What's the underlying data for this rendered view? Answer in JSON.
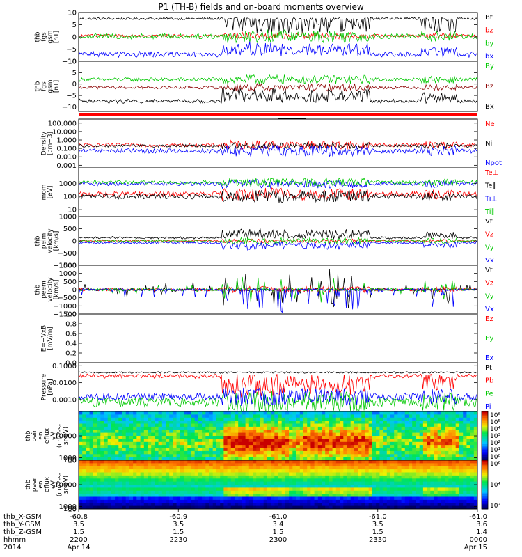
{
  "title": "P1 (TH-B) fields and on-board moments overview",
  "time_axis": {
    "ephemeris": [
      {
        "label": "thb_X-GSM",
        "values": [
          "-60.8",
          "-60.9",
          "-61.0",
          "-61.0",
          "-61.0"
        ]
      },
      {
        "label": "thb_Y-GSM",
        "values": [
          "3.5",
          "3.5",
          "3.4",
          "3.5",
          "3.6"
        ]
      },
      {
        "label": "thb_Z-GSM",
        "values": [
          "1.5",
          "1.5",
          "1.5",
          "1.5",
          "1.4"
        ]
      },
      {
        "label": "hhmm",
        "values": [
          "2200",
          "2230",
          "2300",
          "2330",
          "0000"
        ]
      },
      {
        "label": "2014",
        "values": [
          "Apr 14",
          "",
          "",
          "",
          "Apr 15"
        ]
      }
    ]
  },
  "chart_data": [
    {
      "type": "line",
      "ylabel": [
        "thb",
        "fgs",
        "gsm",
        "[nT]"
      ],
      "ylim": [
        -10,
        10
      ],
      "ticks": [
        "10",
        "5",
        "0",
        "−5",
        "−10"
      ],
      "tickvals": [
        10,
        5,
        0,
        -5,
        -10
      ],
      "series": [
        {
          "name": "Bt",
          "color": "#000000",
          "kind": "bt",
          "base": 7.5,
          "amp": 1.2
        },
        {
          "name": "bz",
          "color": "#ff0000",
          "kind": "noisy",
          "base": 0.5,
          "amp": 1.0
        },
        {
          "name": "by",
          "color": "#00c800",
          "kind": "noisy",
          "base": 0.3,
          "amp": 2.0
        },
        {
          "name": "bx",
          "color": "#0000ff",
          "kind": "bx",
          "base": -7.5,
          "amp": 2.0
        }
      ]
    },
    {
      "type": "line",
      "ylabel": [
        "thb",
        "fgs",
        "gsm",
        "[nT]"
      ],
      "ylim": [
        -12,
        10
      ],
      "ticks": [
        "10",
        "5",
        "0",
        "−5",
        "−10"
      ],
      "tickvals": [
        10,
        5,
        0,
        -5,
        -10
      ],
      "series": [
        {
          "name": "By",
          "color": "#00c800",
          "kind": "noisy",
          "base": 2.0,
          "amp": 1.5
        },
        {
          "name": "Bz",
          "color": "#8b0000",
          "kind": "noisy",
          "base": -1.5,
          "amp": 1.2
        },
        {
          "name": "Bx",
          "color": "#000000",
          "kind": "bx2",
          "base": -8.0,
          "amp": 2.0
        }
      ]
    },
    {
      "type": "line",
      "log": true,
      "ylabel": [
        "Density",
        "[cm−3]"
      ],
      "ylim": [
        0.0005,
        300
      ],
      "ticks": [
        "100.000",
        "10.000",
        "1.000",
        "0.100",
        "0.010",
        "0.001"
      ],
      "tickvals": [
        100,
        10,
        1,
        0.1,
        0.01,
        0.001
      ],
      "series": [
        {
          "name": "Ne",
          "color": "#ff0000",
          "kind": "noisy",
          "base": 0.25,
          "amp": 0.4
        },
        {
          "name": "Ni",
          "color": "#000000",
          "kind": "noisy",
          "base": 0.2,
          "amp": 0.3
        },
        {
          "name": "Npot",
          "color": "#0000ff",
          "kind": "noisy",
          "base": 0.05,
          "amp": 0.5
        }
      ]
    },
    {
      "type": "line",
      "log": true,
      "ylabel": [
        "mom",
        "[eV]"
      ],
      "ylim": [
        3,
        15000
      ],
      "ticks": [
        "1000",
        "100",
        "10"
      ],
      "tickvals": [
        1000,
        100,
        10
      ],
      "series": [
        {
          "name": "Te⊥",
          "color": "#ff0000",
          "kind": "noisy",
          "base": 150,
          "amp": 0.35
        },
        {
          "name": "Te∥",
          "color": "#000000",
          "kind": "noisy",
          "base": 100,
          "amp": 0.35
        },
        {
          "name": "Ti⊥",
          "color": "#0000ff",
          "kind": "noisy",
          "base": 900,
          "amp": 0.25
        },
        {
          "name": "Ti∥",
          "color": "#00c800",
          "kind": "noisy",
          "base": 1200,
          "amp": 0.25
        }
      ]
    },
    {
      "type": "line",
      "ylabel": [
        "thb",
        "peim",
        "velocity",
        "[km/s]"
      ],
      "ylim": [
        -1000,
        1000
      ],
      "ticks": [
        "1000",
        "500",
        "0",
        "−500",
        "−1000"
      ],
      "tickvals": [
        1000,
        500,
        0,
        -500,
        -1000
      ],
      "series": [
        {
          "name": "Vt",
          "color": "#000000",
          "kind": "vt",
          "base": 100,
          "amp": 250
        },
        {
          "name": "Vz",
          "color": "#ff0000",
          "kind": "noisy",
          "base": 0,
          "amp": 60
        },
        {
          "name": "Vy",
          "color": "#00c800",
          "kind": "noisy",
          "base": 0,
          "amp": 100
        },
        {
          "name": "Vx",
          "color": "#0000ff",
          "kind": "vx",
          "base": -50,
          "amp": 250
        }
      ]
    },
    {
      "type": "line",
      "ylabel": [
        "thb",
        "peem",
        "velocity",
        "[km/s]"
      ],
      "ylim": [
        -1500,
        1500
      ],
      "ticks": [
        "1500",
        "1000",
        "500",
        "0",
        "−500",
        "−1000",
        "−1500"
      ],
      "tickvals": [
        1500,
        1000,
        500,
        0,
        -500,
        -1000,
        -1500
      ],
      "series": [
        {
          "name": "Vt",
          "color": "#000000",
          "kind": "spiky",
          "base": 0,
          "amp": 500
        },
        {
          "name": "Vz",
          "color": "#ff0000",
          "kind": "noisy",
          "base": 0,
          "amp": 150
        },
        {
          "name": "Vy",
          "color": "#00c800",
          "kind": "spiky",
          "base": 0,
          "amp": 300
        },
        {
          "name": "Vx",
          "color": "#0000ff",
          "kind": "spikyneg",
          "base": 0,
          "amp": 500
        }
      ]
    },
    {
      "type": "line",
      "ylabel": [
        "E=−VxB",
        "[mV/m]"
      ],
      "ylim": [
        0,
        1
      ],
      "ticks": [
        "1.0",
        "0.8",
        "0.6",
        "0.4",
        "0.2",
        "0.0"
      ],
      "tickvals": [
        1.0,
        0.8,
        0.6,
        0.4,
        0.2,
        0.0
      ],
      "series": [
        {
          "name": "Ez",
          "color": "#ff0000",
          "kind": "none"
        },
        {
          "name": "Ey",
          "color": "#00c800",
          "kind": "none"
        },
        {
          "name": "Ex",
          "color": "#0000ff",
          "kind": "none"
        }
      ]
    },
    {
      "type": "line",
      "log": true,
      "ylabel": [
        "Pressure",
        "[nPa]"
      ],
      "ylim": [
        0.0002,
        0.15
      ],
      "ticks": [
        "0.1000",
        "0.0100",
        "0.0010"
      ],
      "tickvals": [
        0.1,
        0.01,
        0.001
      ],
      "series": [
        {
          "name": "Pt",
          "color": "#000000",
          "kind": "flat",
          "base": 0.04,
          "amp": 0.1
        },
        {
          "name": "Pb",
          "color": "#ff0000",
          "kind": "pb",
          "base": 0.03,
          "amp": 0.4
        },
        {
          "name": "Pe",
          "color": "#00c800",
          "kind": "noisy",
          "base": 0.0007,
          "amp": 0.5
        },
        {
          "name": "Pi",
          "color": "#0000ff",
          "kind": "noisy",
          "base": 0.0015,
          "amp": 0.4
        }
      ]
    },
    {
      "type": "heatmap",
      "ylabel": [
        "thb",
        "peir",
        "en",
        "eflux",
        "eV",
        "(cm2-s-",
        "sr-eV)"
      ],
      "ylim": [
        5,
        20000
      ],
      "ticks": [
        "10000",
        "1000",
        "100",
        "10"
      ],
      "tickvals": [
        10000,
        1000,
        100,
        10
      ],
      "colorbar": {
        "ticks": [
          "10⁶",
          "10⁵",
          "10⁴",
          "10³",
          "10²",
          "10¹",
          "10⁰"
        ]
      }
    },
    {
      "type": "heatmap",
      "ylabel": [
        "thb",
        "peer",
        "en",
        "eflux",
        "eV",
        "(cm2-s-",
        "sr-eV)"
      ],
      "ylim": [
        5,
        20000
      ],
      "ticks": [
        "10000",
        "1000",
        "100",
        "10"
      ],
      "tickvals": [
        10000,
        1000,
        100,
        10
      ],
      "colorbar": {
        "ticks": [
          "10⁶",
          "10⁴",
          "10²"
        ]
      }
    }
  ]
}
